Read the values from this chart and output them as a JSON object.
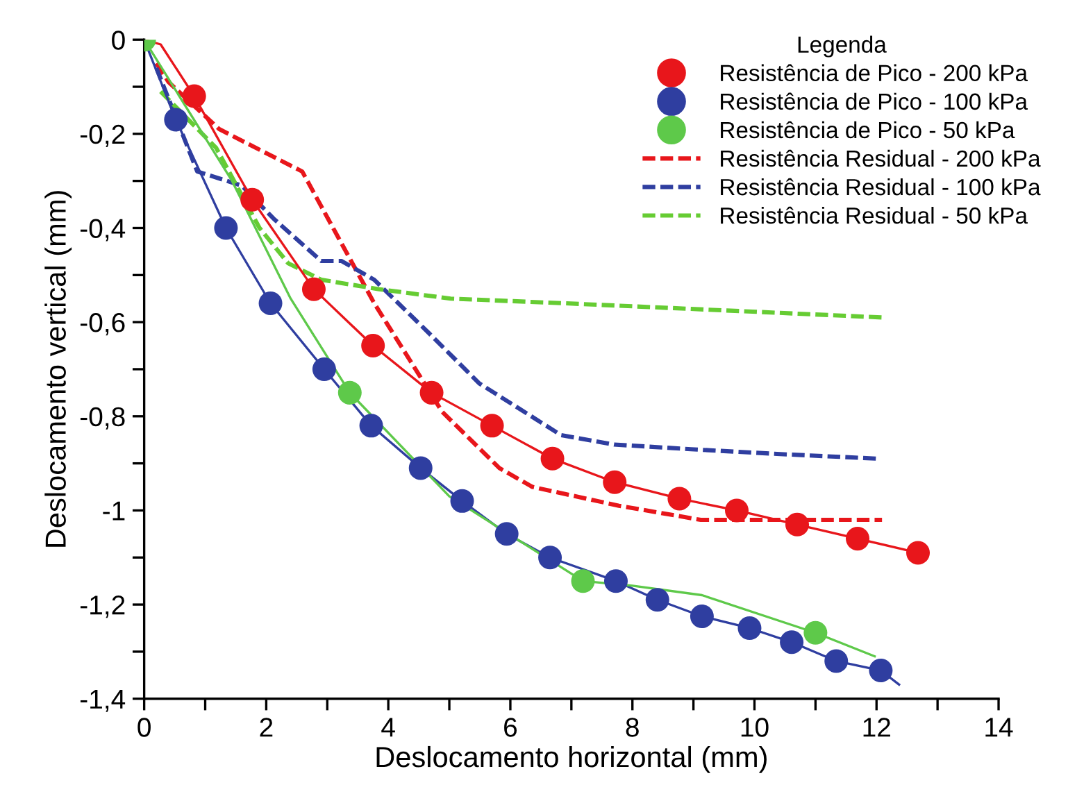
{
  "chart_data": {
    "type": "line",
    "xlabel": "Deslocamento horizontal (mm)",
    "ylabel": "Deslocamento vertical (mm)",
    "legend_title": "Legenda",
    "legend": "top right",
    "grid": false,
    "xlim": [
      0,
      14
    ],
    "ylim": [
      -1.4,
      0
    ],
    "xticks": [
      0,
      {
        "value": 1,
        "label": null
      },
      2,
      {
        "value": 3,
        "label": null
      },
      4,
      {
        "value": 5,
        "label": null
      },
      6,
      {
        "value": 7,
        "label": null
      },
      8,
      {
        "value": 9,
        "label": null
      },
      10,
      {
        "value": 11,
        "label": null
      },
      12,
      {
        "value": 13,
        "label": null
      },
      14
    ],
    "yticks": [
      0,
      {
        "value": -0.1,
        "label": null
      },
      {
        "value": -0.2,
        "label": "-0,2"
      },
      {
        "value": -0.3,
        "label": null
      },
      {
        "value": -0.4,
        "label": "-0,4"
      },
      {
        "value": -0.5,
        "label": null
      },
      {
        "value": -0.6,
        "label": "-0,6"
      },
      {
        "value": -0.7,
        "label": null
      },
      {
        "value": -0.8,
        "label": "-0,8"
      },
      {
        "value": -0.9,
        "label": null
      },
      {
        "value": -1,
        "label": "-1"
      },
      {
        "value": -1.1,
        "label": null
      },
      {
        "value": -1.2,
        "label": "-1,2"
      },
      {
        "value": -1.3,
        "label": null
      },
      {
        "value": -1.4,
        "label": "-1,4"
      }
    ],
    "series": [
      {
        "name": "Resistência de Pico - 200 kPa",
        "type": "scatter",
        "marker": "circle",
        "color": "#e8161b",
        "x": [
          0.82,
          1.77,
          2.78,
          3.75,
          4.71,
          5.7,
          6.69,
          7.71,
          8.77,
          9.71,
          10.7,
          11.69,
          12.68
        ],
        "values": [
          -0.12,
          -0.34,
          -0.53,
          -0.65,
          -0.75,
          -0.82,
          -0.89,
          -0.94,
          -0.975,
          -1.0,
          -1.03,
          -1.06,
          -1.09
        ]
      },
      {
        "name": "Resistência de Pico - 100 kPa",
        "type": "scatter",
        "marker": "circle",
        "color": "#2f3ea0",
        "x": [
          0.52,
          1.34,
          2.07,
          2.95,
          3.72,
          4.53,
          5.21,
          5.94,
          6.65,
          7.73,
          8.41,
          9.14,
          9.92,
          10.61,
          11.34,
          12.07
        ],
        "values": [
          -0.17,
          -0.4,
          -0.56,
          -0.7,
          -0.82,
          -0.91,
          -0.98,
          -1.05,
          -1.1,
          -1.15,
          -1.19,
          -1.225,
          -1.25,
          -1.28,
          -1.32,
          -1.34
        ]
      },
      {
        "name": "Resistência de Pico - 50 kPa",
        "type": "scatter",
        "marker": "circle",
        "color": "#5ec94a",
        "x": [
          0,
          3.37,
          7.19,
          11.0
        ],
        "values": [
          0,
          -0.75,
          -1.15,
          -1.26
        ]
      },
      {
        "name": "Resistência Residual - 200 kPa",
        "line_style": "dashed",
        "color": "#e8161b",
        "x": [
          0.2,
          0.4,
          1.23,
          2.59,
          3.77,
          4.88,
          5.82,
          6.36,
          7.78,
          9.12,
          12.09
        ],
        "values": [
          -0.05,
          -0.09,
          -0.19,
          -0.28,
          -0.56,
          -0.79,
          -0.91,
          -0.95,
          -0.99,
          -1.02,
          -1.02
        ]
      },
      {
        "name": "Resistência Residual - 100 kPa",
        "line_style": "dashed",
        "color": "#2f3ea0",
        "x": [
          0.2,
          0.87,
          1.6,
          2.12,
          2.9,
          3.23,
          3.77,
          4.64,
          5.49,
          6.83,
          7.7,
          8.96,
          10.37,
          12.02
        ],
        "values": [
          -0.06,
          -0.28,
          -0.31,
          -0.38,
          -0.47,
          -0.47,
          -0.51,
          -0.62,
          -0.73,
          -0.84,
          -0.86,
          -0.87,
          -0.88,
          -0.89
        ]
      },
      {
        "name": "Resistência Residual - 50 kPa",
        "line_style": "dashed",
        "color": "#66cc33",
        "x": [
          0.27,
          1.18,
          1.89,
          2.36,
          2.9,
          3.85,
          5.02,
          6.9,
          12.09
        ],
        "values": [
          -0.11,
          -0.23,
          -0.4,
          -0.475,
          -0.51,
          -0.53,
          -0.55,
          -0.56,
          -0.59
        ]
      },
      {
        "line_style": "solid",
        "color": "#e8161b",
        "x": [
          0,
          0.27,
          0.82,
          1.77,
          2.78,
          3.75,
          4.71,
          5.7,
          6.69,
          7.71,
          8.77,
          9.71,
          10.7,
          11.69,
          12.68
        ],
        "values": [
          0,
          -0.01,
          -0.12,
          -0.34,
          -0.53,
          -0.65,
          -0.75,
          -0.82,
          -0.89,
          -0.94,
          -0.975,
          -1.0,
          -1.03,
          -1.06,
          -1.09
        ]
      },
      {
        "line_style": "solid",
        "color": "#2f3ea0",
        "x": [
          0,
          0.52,
          1.34,
          2.07,
          2.95,
          3.72,
          4.53,
          5.21,
          5.94,
          6.65,
          7.73,
          8.41,
          9.14,
          9.92,
          10.61,
          11.34,
          12.07,
          12.37
        ],
        "values": [
          0,
          -0.17,
          -0.4,
          -0.56,
          -0.7,
          -0.82,
          -0.91,
          -0.98,
          -1.05,
          -1.1,
          -1.15,
          -1.19,
          -1.225,
          -1.25,
          -1.28,
          -1.32,
          -1.34,
          -1.37
        ]
      },
      {
        "line_style": "solid",
        "color": "#5ec94a",
        "x": [
          0,
          1.44,
          2.4,
          3.37,
          5.0,
          7.19,
          8.0,
          9.14,
          11.0,
          11.97
        ],
        "values": [
          0,
          -0.3,
          -0.55,
          -0.75,
          -0.97,
          -1.15,
          -1.16,
          -1.18,
          -1.26,
          -1.31
        ]
      }
    ]
  }
}
